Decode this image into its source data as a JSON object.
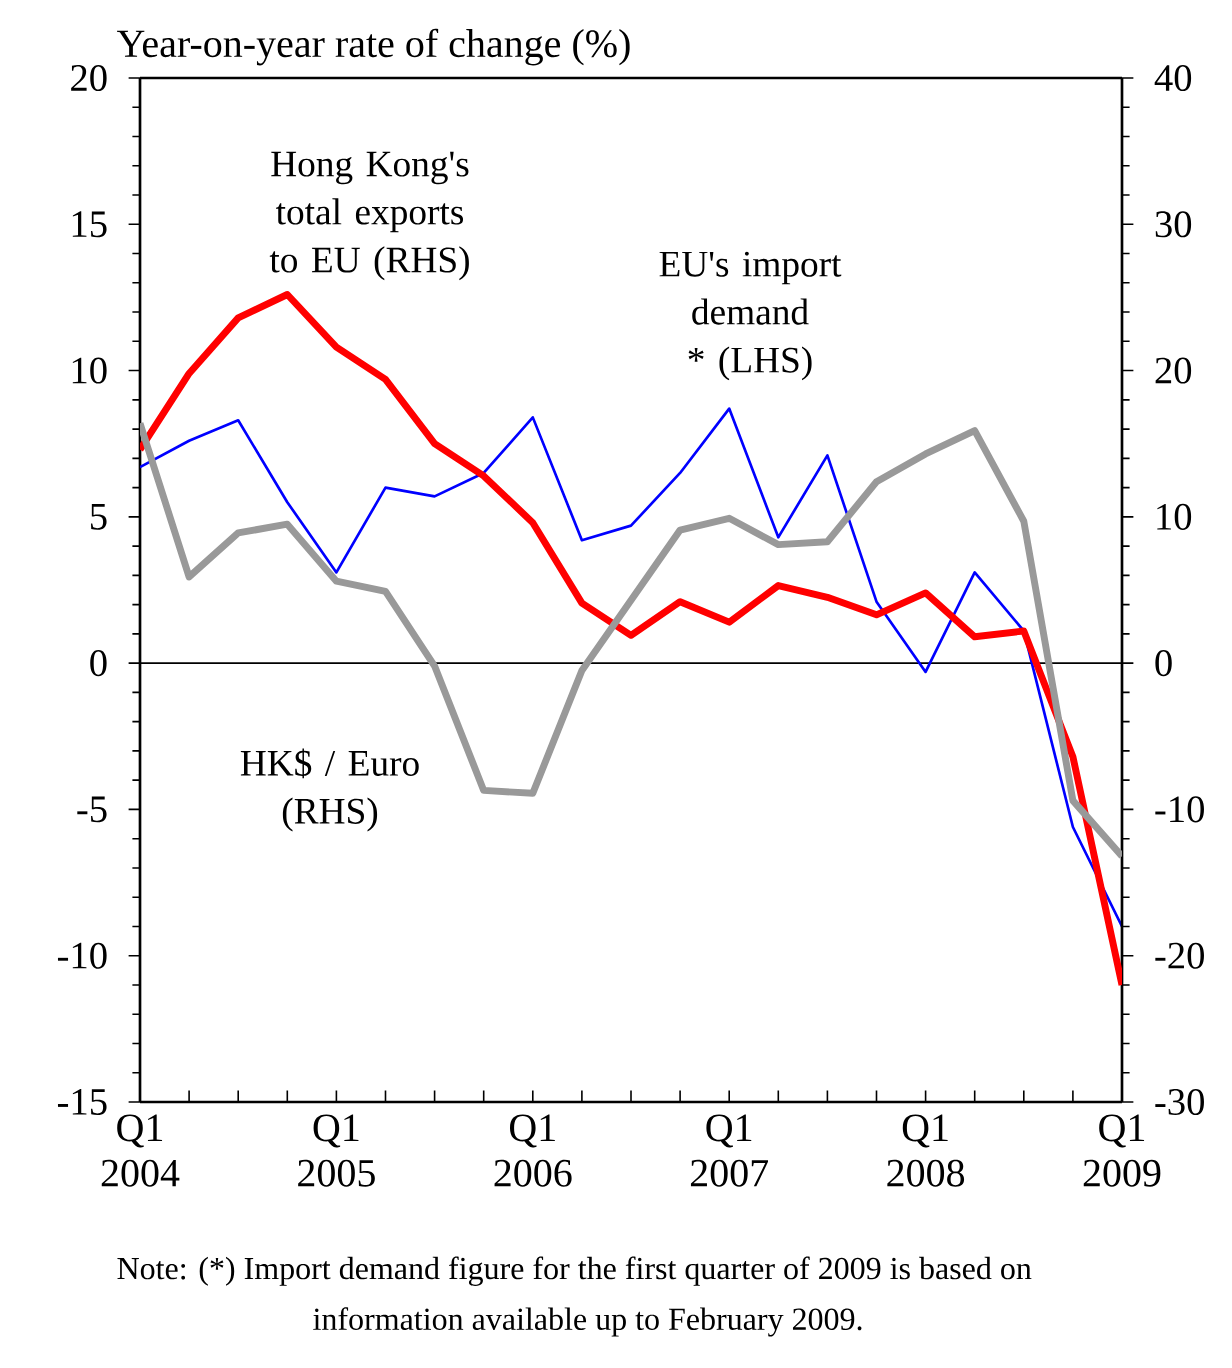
{
  "chart_data": {
    "type": "line",
    "ylabel": "Year-on-year rate of change (%)",
    "categories": [
      "Q1 2004",
      null,
      null,
      null,
      "Q1 2005",
      null,
      null,
      null,
      "Q1 2006",
      null,
      null,
      null,
      "Q1 2007",
      null,
      null,
      null,
      "Q1 2008",
      null,
      null,
      null,
      "Q1 2009"
    ],
    "series": [
      {
        "name": "Hong Kong's total exports to EU (RHS)",
        "color": "#ff0000",
        "axis": "y2",
        "values": [
          14.6,
          19.8,
          23.6,
          25.2,
          21.6,
          19.4,
          15.0,
          12.8,
          9.6,
          4.1,
          1.9,
          4.2,
          2.8,
          5.3,
          4.5,
          3.3,
          4.8,
          1.8,
          2.2,
          -6.4,
          -22.0
        ]
      },
      {
        "name": "EU's import demand * (LHS)",
        "color": "#0000ff",
        "axis": "y",
        "values": [
          6.7,
          7.6,
          8.3,
          5.5,
          3.1,
          6.0,
          5.7,
          6.5,
          8.4,
          4.2,
          4.7,
          6.5,
          8.7,
          4.3,
          7.1,
          2.1,
          -0.3,
          3.1,
          1.1,
          -5.6,
          -9.0
        ]
      },
      {
        "name": "HK$ / Euro (RHS)",
        "color": "#999999",
        "axis": "y2",
        "values": [
          16.4,
          5.9,
          8.9,
          9.5,
          5.6,
          4.9,
          -0.2,
          -8.7,
          -8.9,
          -0.5,
          4.3,
          9.1,
          9.9,
          8.1,
          8.3,
          12.4,
          14.3,
          15.9,
          9.7,
          -9.4,
          -13.2
        ]
      }
    ],
    "ylim": [
      -15,
      20
    ],
    "yticks": [
      -15,
      -10,
      -5,
      0,
      5,
      10,
      15,
      20
    ],
    "y2lim": [
      -30,
      40
    ],
    "y2ticks": [
      -30,
      -20,
      -10,
      0,
      10,
      20,
      30,
      40
    ],
    "ref_lines": [
      {
        "axis": "y",
        "value": 0,
        "color": "#000000"
      }
    ],
    "grid": false,
    "marker": "none",
    "line_style": "solid",
    "annotations": [
      "Note:  (*)  Import demand figure for the first quarter of 2009 is based on information available up to February 2009."
    ]
  }
}
